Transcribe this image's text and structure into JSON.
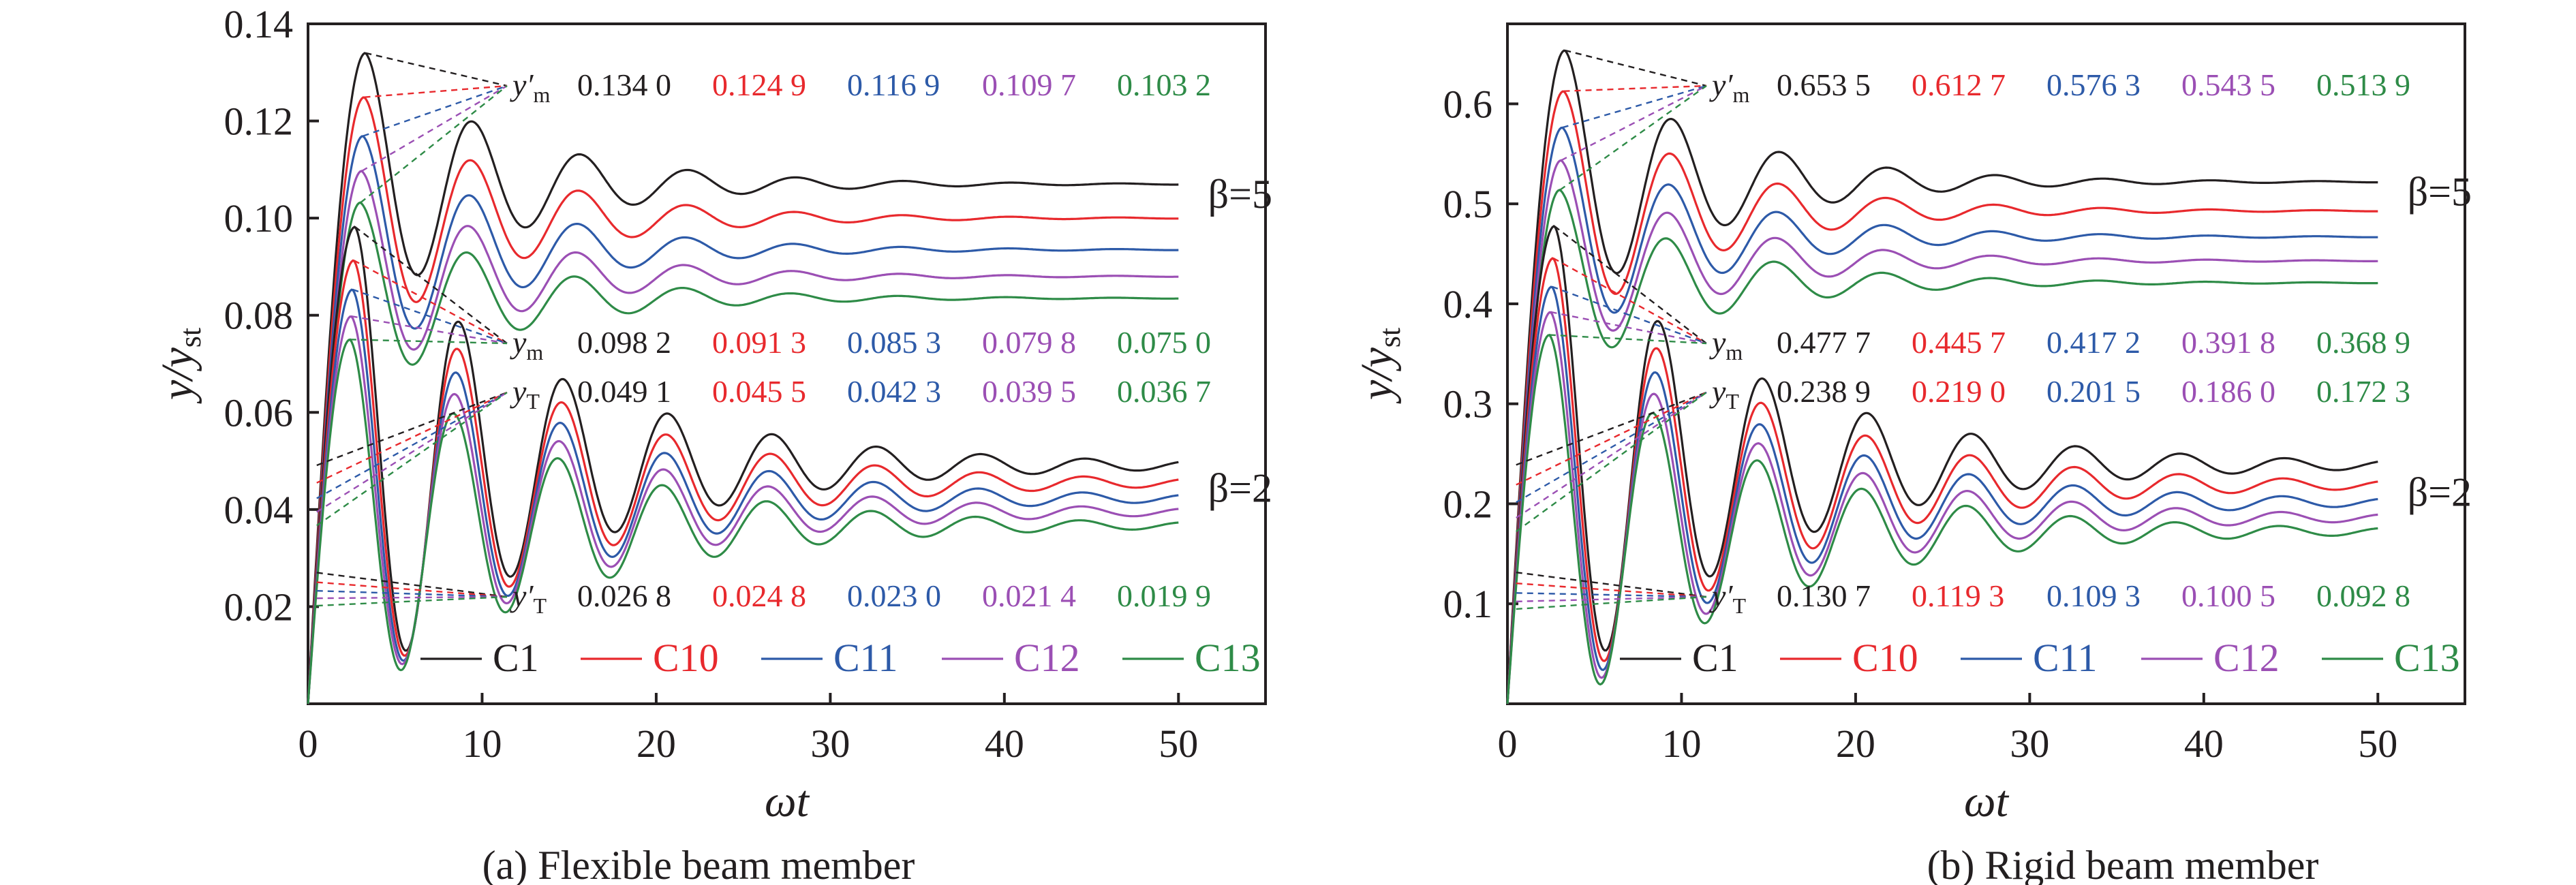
{
  "figure": {
    "panels": [
      "panel_a",
      "panel_b"
    ]
  },
  "colors": {
    "C1": "#231f20",
    "C10": "#e8292d",
    "C11": "#2d5aa8",
    "C12": "#9b4fb4",
    "C13": "#2e8b47"
  },
  "chart_data": [
    {
      "id": "panel_a",
      "type": "line",
      "caption": "(a) Flexible beam member",
      "xlabel": "ωt",
      "ylabel": "y/y_st",
      "xlim": [
        0,
        55
      ],
      "ylim": [
        0,
        0.14
      ],
      "xticks": [
        0,
        10,
        20,
        30,
        40,
        50
      ],
      "xtick_labels": [
        "0",
        "10",
        "20",
        "30",
        "40",
        "50"
      ],
      "yticks": [
        0.02,
        0.04,
        0.06,
        0.08,
        0.1,
        0.12,
        0.14
      ],
      "ytick_labels": [
        "0.02",
        "0.04",
        "0.06",
        "0.08",
        "0.10",
        "0.12",
        "0.14"
      ],
      "grid": false,
      "legend": {
        "placement": "bottom-right",
        "entries": [
          "C1",
          "C10",
          "C11",
          "C12",
          "C13"
        ]
      },
      "series": [
        {
          "name": "C1",
          "beta5": {
            "peak": 0.134,
            "final": 0.107
          },
          "beta2": {
            "peak": 0.0982,
            "final": 0.0491
          }
        },
        {
          "name": "C10",
          "beta5": {
            "peak": 0.1249,
            "final": 0.1
          },
          "beta2": {
            "peak": 0.0913,
            "final": 0.0455
          }
        },
        {
          "name": "C11",
          "beta5": {
            "peak": 0.1169,
            "final": 0.0935
          },
          "beta2": {
            "peak": 0.0853,
            "final": 0.0423
          }
        },
        {
          "name": "C12",
          "beta5": {
            "peak": 0.1097,
            "final": 0.088
          },
          "beta2": {
            "peak": 0.0798,
            "final": 0.0395
          }
        },
        {
          "name": "C13",
          "beta5": {
            "peak": 0.1032,
            "final": 0.0835
          },
          "beta2": {
            "peak": 0.075,
            "final": 0.0367
          }
        }
      ],
      "annotations": {
        "beta_high": "β=5",
        "beta_low": "β=2",
        "rows": [
          {
            "symbol": "y′m",
            "values": [
              "0.134 0",
              "0.124 9",
              "0.116 9",
              "0.109 7",
              "0.103 2"
            ]
          },
          {
            "symbol": "ym",
            "values": [
              "0.098 2",
              "0.091 3",
              "0.085 3",
              "0.079 8",
              "0.075 0"
            ]
          },
          {
            "symbol": "yT",
            "values": [
              "0.049 1",
              "0.045 5",
              "0.042 3",
              "0.039 5",
              "0.036 7"
            ]
          },
          {
            "symbol": "y′T",
            "values": [
              "0.026 8",
              "0.024 8",
              "0.023 0",
              "0.021 4",
              "0.019 9"
            ]
          }
        ]
      }
    },
    {
      "id": "panel_b",
      "type": "line",
      "caption": "(b) Rigid beam member",
      "xlabel": "ωt",
      "ylabel": "y/y_st",
      "xlim": [
        0,
        55
      ],
      "ylim": [
        0,
        0.68
      ],
      "xticks": [
        0,
        10,
        20,
        30,
        40,
        50
      ],
      "xtick_labels": [
        "0",
        "10",
        "20",
        "30",
        "40",
        "50"
      ],
      "yticks": [
        0.1,
        0.2,
        0.3,
        0.4,
        0.5,
        0.6
      ],
      "ytick_labels": [
        "0.1",
        "0.2",
        "0.3",
        "0.4",
        "0.5",
        "0.6"
      ],
      "grid": false,
      "legend": {
        "placement": "bottom-right",
        "entries": [
          "C1",
          "C10",
          "C11",
          "C12",
          "C13"
        ]
      },
      "series": [
        {
          "name": "C1",
          "beta5": {
            "peak": 0.6535,
            "final": 0.522
          },
          "beta2": {
            "peak": 0.4777,
            "final": 0.2389
          }
        },
        {
          "name": "C10",
          "beta5": {
            "peak": 0.6127,
            "final": 0.493
          },
          "beta2": {
            "peak": 0.4457,
            "final": 0.219
          }
        },
        {
          "name": "C11",
          "beta5": {
            "peak": 0.5763,
            "final": 0.467
          },
          "beta2": {
            "peak": 0.4172,
            "final": 0.2015
          }
        },
        {
          "name": "C12",
          "beta5": {
            "peak": 0.5435,
            "final": 0.443
          },
          "beta2": {
            "peak": 0.3918,
            "final": 0.186
          }
        },
        {
          "name": "C13",
          "beta5": {
            "peak": 0.5139,
            "final": 0.421
          },
          "beta2": {
            "peak": 0.3689,
            "final": 0.1723
          }
        }
      ],
      "annotations": {
        "beta_high": "β=5",
        "beta_low": "β=2",
        "rows": [
          {
            "symbol": "y′m",
            "values": [
              "0.653 5",
              "0.612 7",
              "0.576 3",
              "0.543 5",
              "0.513 9"
            ]
          },
          {
            "symbol": "ym",
            "values": [
              "0.477 7",
              "0.445 7",
              "0.417 2",
              "0.391 8",
              "0.368 9"
            ]
          },
          {
            "symbol": "yT",
            "values": [
              "0.238 9",
              "0.219 0",
              "0.201 5",
              "0.186 0",
              "0.172 3"
            ]
          },
          {
            "symbol": "y′T",
            "values": [
              "0.130 7",
              "0.119 3",
              "0.109 3",
              "0.100 5",
              "0.092 8"
            ]
          }
        ]
      }
    }
  ]
}
